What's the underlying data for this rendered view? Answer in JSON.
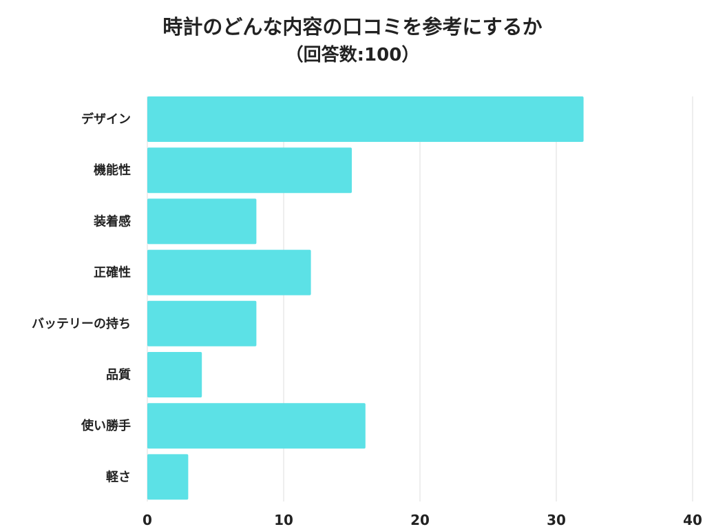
{
  "chart_data": {
    "type": "bar",
    "orientation": "horizontal",
    "title": "時計のどんな内容の口コミを参考にするか",
    "subtitle": "（回答数:100）",
    "xlabel": "",
    "ylabel": "",
    "categories": [
      "デザイン",
      "機能性",
      "装着感",
      "正確性",
      "バッテリーの持ち",
      "品質",
      "使い勝手",
      "軽さ"
    ],
    "values": [
      32,
      15,
      8,
      12,
      8,
      4,
      16,
      3
    ],
    "xlim": [
      0,
      40
    ],
    "xticks": [
      0,
      10,
      20,
      30,
      40
    ],
    "grid": true,
    "legend": "none",
    "bar_color": "#5ce1e6",
    "grid_color": "#dddddd",
    "text_color": "#222222"
  }
}
